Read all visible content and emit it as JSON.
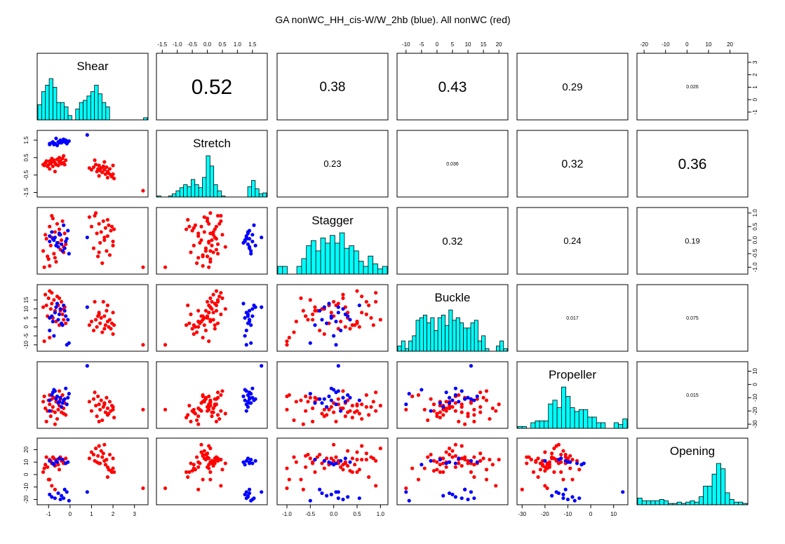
{
  "chart_data": {
    "type": "scatter-matrix",
    "title": "GA nonWC_HH_cis-W/W_2hb (blue). All nonWC (red)",
    "variables": [
      "Shear",
      "Stretch",
      "Stagger",
      "Buckle",
      "Propeller",
      "Opening"
    ],
    "colors": {
      "blue_series": "#0000ff",
      "red_series": "#ff0000",
      "histogram_fill": "#00ffff"
    },
    "series": [
      {
        "name": "GA nonWC_HH_cis-W/W_2hb",
        "color": "blue"
      },
      {
        "name": "All nonWC",
        "color": "red"
      }
    ],
    "ranges": {
      "Shear": [
        -1.4,
        3.5
      ],
      "Stretch": [
        -1.6,
        1.9
      ],
      "Stagger": [
        -1.15,
        1.1
      ],
      "Buckle": [
        -12,
        22
      ],
      "Propeller": [
        -31,
        15
      ],
      "Opening": [
        -22,
        27
      ]
    },
    "axis_ticks": {
      "top": {
        "Stretch": [
          "-1.5",
          "-1.0",
          "-0.5",
          "0.0",
          "0.5",
          "1.0",
          "1.5"
        ],
        "Buckle": [
          "-10",
          "-5",
          "0",
          "5",
          "10",
          "15",
          "20"
        ],
        "Opening": [
          "-20",
          "-10",
          "0",
          "10",
          "20"
        ]
      },
      "bottom": {
        "Shear": [
          "-1",
          "0",
          "1",
          "2",
          "3"
        ],
        "Stagger": [
          "-1.0",
          "-0.5",
          "0.0",
          "0.5",
          "1.0"
        ],
        "Propeller": [
          "-30",
          "-20",
          "-10",
          "0",
          "10"
        ]
      },
      "left": {
        "Stretch": [
          "-1.5",
          "-0.5",
          "0.5",
          "1.5"
        ],
        "Buckle": [
          "-10",
          "-5",
          "0",
          "5",
          "10",
          "15"
        ],
        "Opening": [
          "-20",
          "-10",
          "0",
          "10",
          "20"
        ]
      },
      "right": {
        "Shear": [
          "-1",
          "0",
          "1",
          "2",
          "3"
        ],
        "Stagger": [
          "-1.0",
          "-0.5",
          "0.0",
          "0.5",
          "1.0"
        ],
        "Propeller": [
          "-30",
          "-20",
          "-10",
          "0",
          "10"
        ]
      }
    },
    "correlations": [
      {
        "row": 0,
        "col": 1,
        "value": "0.52",
        "size": 30
      },
      {
        "row": 0,
        "col": 2,
        "value": "0.38",
        "size": 19
      },
      {
        "row": 0,
        "col": 3,
        "value": "0.43",
        "size": 21
      },
      {
        "row": 0,
        "col": 4,
        "value": "0.29",
        "size": 15
      },
      {
        "row": 0,
        "col": 5,
        "value": "0.026",
        "size": 7
      },
      {
        "row": 1,
        "col": 2,
        "value": "0.23",
        "size": 13
      },
      {
        "row": 1,
        "col": 3,
        "value": "0.036",
        "size": 7
      },
      {
        "row": 1,
        "col": 4,
        "value": "0.32",
        "size": 16
      },
      {
        "row": 1,
        "col": 5,
        "value": "0.36",
        "size": 21
      },
      {
        "row": 2,
        "col": 3,
        "value": "0.32",
        "size": 15
      },
      {
        "row": 2,
        "col": 4,
        "value": "0.24",
        "size": 13
      },
      {
        "row": 2,
        "col": 5,
        "value": "0.19",
        "size": 11
      },
      {
        "row": 3,
        "col": 4,
        "value": "0.017",
        "size": 7
      },
      {
        "row": 3,
        "col": 5,
        "value": "0.075",
        "size": 7
      },
      {
        "row": 4,
        "col": 5,
        "value": "0.015",
        "size": 7
      }
    ],
    "histograms": {
      "Shear": [
        7,
        13,
        16,
        19,
        15,
        8,
        8,
        6,
        2,
        0,
        5,
        8,
        9,
        11,
        13,
        16,
        12,
        8,
        6,
        0,
        0,
        0,
        0,
        0,
        0,
        0,
        0,
        0,
        1
      ],
      "Stretch": [
        1,
        0,
        0,
        1,
        3,
        6,
        9,
        12,
        10,
        17,
        12,
        9,
        19,
        40,
        30,
        12,
        6,
        1,
        0,
        0,
        0,
        0,
        0,
        0,
        10,
        16,
        8,
        3,
        4
      ],
      "Stagger": [
        3,
        3,
        0,
        0,
        3,
        6,
        11,
        13,
        9,
        14,
        12,
        15,
        12,
        16,
        10,
        11,
        9,
        5,
        3,
        7,
        4,
        2,
        3
      ],
      "Buckle": [
        2,
        4,
        1,
        4,
        6,
        12,
        13,
        14,
        11,
        13,
        8,
        13,
        14,
        10,
        16,
        12,
        13,
        11,
        9,
        9,
        11,
        12,
        4,
        6,
        1,
        0,
        0,
        2,
        4,
        1
      ],
      "Propeller": [
        1,
        1,
        0,
        3,
        4,
        4,
        4,
        13,
        15,
        11,
        22,
        17,
        11,
        9,
        10,
        10,
        6,
        6,
        3,
        3,
        0,
        0,
        3,
        2,
        5
      ],
      "Opening": [
        5,
        3,
        3,
        3,
        3,
        4,
        3,
        1,
        1,
        2,
        1,
        2,
        3,
        2,
        6,
        14,
        14,
        23,
        31,
        27,
        9,
        4,
        2,
        2,
        1
      ]
    },
    "points": {
      "blue": [
        [
          -0.95,
          1.25,
          -0.05,
          5,
          -12,
          -16
        ],
        [
          -0.85,
          1.35,
          0.3,
          6,
          -8,
          -18
        ],
        [
          -0.7,
          1.3,
          0.1,
          8,
          -5,
          -19
        ],
        [
          -0.55,
          1.4,
          -0.25,
          4,
          -14,
          -15
        ],
        [
          -0.45,
          1.5,
          0.2,
          10,
          -10,
          -20
        ],
        [
          -0.4,
          1.35,
          -0.15,
          2,
          -17,
          -17
        ],
        [
          -0.3,
          1.55,
          0.55,
          12,
          -12,
          -19
        ],
        [
          -0.25,
          1.4,
          -0.3,
          9,
          -11,
          -12
        ],
        [
          -0.15,
          1.3,
          0.05,
          -10,
          -15,
          -14
        ],
        [
          -0.05,
          1.45,
          -0.5,
          -9,
          -7,
          -21
        ],
        [
          0.8,
          1.8,
          0.1,
          11,
          14,
          -14
        ],
        [
          -0.6,
          1.2,
          -0.1,
          13,
          -9,
          10
        ],
        [
          -0.65,
          1.6,
          -0.2,
          11,
          -11,
          11
        ],
        [
          -0.8,
          1.4,
          0.05,
          3,
          -6,
          9
        ],
        [
          -0.95,
          1.3,
          0.15,
          -2,
          -20,
          11
        ],
        [
          -0.35,
          1.45,
          -0.4,
          1,
          -14,
          12
        ],
        [
          -0.5,
          1.35,
          0.25,
          7,
          -13,
          13
        ],
        [
          -0.75,
          1.25,
          0.0,
          -5,
          -4,
          8
        ],
        [
          -0.2,
          1.5,
          -0.05,
          6,
          -3,
          9
        ],
        [
          -0.1,
          1.4,
          0.35,
          4,
          -10,
          10
        ]
      ],
      "red": [
        [
          -1.25,
          0.1,
          -0.4,
          11,
          -13,
          2
        ],
        [
          -1.15,
          0.2,
          0.2,
          18,
          -18,
          8
        ],
        [
          -1.05,
          0.0,
          -0.6,
          6,
          -20,
          6
        ],
        [
          -0.95,
          0.3,
          0.5,
          20,
          -15,
          12
        ],
        [
          -0.9,
          0.15,
          -0.2,
          10,
          -24,
          11
        ],
        [
          -0.85,
          0.25,
          0.1,
          13,
          -11,
          9
        ],
        [
          -0.8,
          0.0,
          0.8,
          5,
          -17,
          14
        ],
        [
          -0.75,
          0.35,
          -0.5,
          15,
          -10,
          13
        ],
        [
          -0.7,
          0.2,
          0.3,
          8,
          -21,
          7
        ],
        [
          -0.65,
          0.1,
          -0.8,
          3,
          -13,
          10
        ],
        [
          -0.6,
          0.4,
          0.6,
          17,
          -26,
          12
        ],
        [
          -0.55,
          0.05,
          -0.1,
          12,
          -19,
          8
        ],
        [
          -0.5,
          0.25,
          0.4,
          1,
          -16,
          13
        ],
        [
          -0.45,
          0.3,
          -0.35,
          9,
          -11,
          14
        ],
        [
          -0.4,
          0.15,
          0.0,
          14,
          -21,
          11
        ],
        [
          -0.35,
          0.45,
          0.7,
          7,
          -8,
          12
        ],
        [
          -0.3,
          0.2,
          -0.45,
          4,
          -18,
          10
        ],
        [
          -0.25,
          0.1,
          0.25,
          11,
          -14,
          9
        ],
        [
          -0.2,
          0.35,
          -0.15,
          2,
          -23,
          13
        ],
        [
          -1.2,
          0.05,
          -1.0,
          -8,
          -9,
          5
        ],
        [
          -1.1,
          0.3,
          0.05,
          12,
          -28,
          14
        ],
        [
          -1.0,
          0.1,
          -0.7,
          16,
          -12,
          -4
        ],
        [
          0.9,
          -0.1,
          0.85,
          1,
          -13,
          13
        ],
        [
          1.0,
          -0.2,
          0.5,
          3,
          -20,
          18
        ],
        [
          1.1,
          -0.05,
          -0.3,
          -2,
          -11,
          16
        ],
        [
          1.2,
          0.1,
          1.0,
          4,
          -16,
          21
        ],
        [
          1.25,
          -0.3,
          0.25,
          0,
          -24,
          10
        ],
        [
          1.3,
          -0.15,
          -0.6,
          6,
          -9,
          15
        ],
        [
          1.35,
          0.05,
          0.6,
          8,
          -15,
          23
        ],
        [
          1.4,
          -0.25,
          -0.1,
          2,
          -19,
          9
        ],
        [
          1.45,
          -0.1,
          0.3,
          5,
          -12,
          19
        ],
        [
          1.5,
          -0.35,
          -0.85,
          -3,
          -27,
          14
        ],
        [
          1.55,
          0.0,
          0.7,
          14,
          -17,
          17
        ],
        [
          1.6,
          -0.2,
          0.0,
          6,
          -14,
          24
        ],
        [
          1.65,
          -0.45,
          0.45,
          1,
          -21,
          8
        ],
        [
          1.7,
          -0.05,
          -0.4,
          9,
          -10,
          12
        ],
        [
          1.75,
          -0.3,
          0.15,
          3,
          -18,
          6
        ],
        [
          1.8,
          -0.4,
          0.55,
          0,
          -22,
          4
        ],
        [
          1.85,
          -0.15,
          -0.55,
          4,
          -13,
          16
        ],
        [
          1.9,
          -0.5,
          0.35,
          -1,
          -20,
          3
        ],
        [
          1.95,
          -0.6,
          0.5,
          2,
          -16,
          2
        ],
        [
          2.0,
          -0.45,
          -0.2,
          -4,
          -19,
          5
        ],
        [
          2.05,
          -0.7,
          0.4,
          1,
          -25,
          2
        ],
        [
          3.4,
          -1.4,
          -1.0,
          -10,
          -19,
          -11
        ],
        [
          -0.95,
          -0.15,
          -0.95,
          -6,
          -8,
          -4
        ],
        [
          -0.85,
          0.45,
          0.9,
          19,
          -20,
          -9
        ],
        [
          -0.7,
          -0.3,
          -0.65,
          9,
          -30,
          -12
        ],
        [
          -0.5,
          0.5,
          0.2,
          16,
          -5,
          4
        ],
        [
          -0.3,
          0.6,
          -0.25,
          10,
          -22,
          9
        ],
        [
          1.15,
          0.35,
          0.9,
          14,
          -6,
          11
        ],
        [
          1.35,
          -0.55,
          -0.45,
          7,
          -28,
          9
        ],
        [
          1.6,
          0.25,
          0.1,
          -1,
          -15,
          11
        ],
        [
          1.75,
          -0.65,
          0.75,
          12,
          -23,
          -2
        ],
        [
          2.0,
          0.05,
          -0.05,
          8,
          -17,
          13
        ]
      ]
    }
  }
}
